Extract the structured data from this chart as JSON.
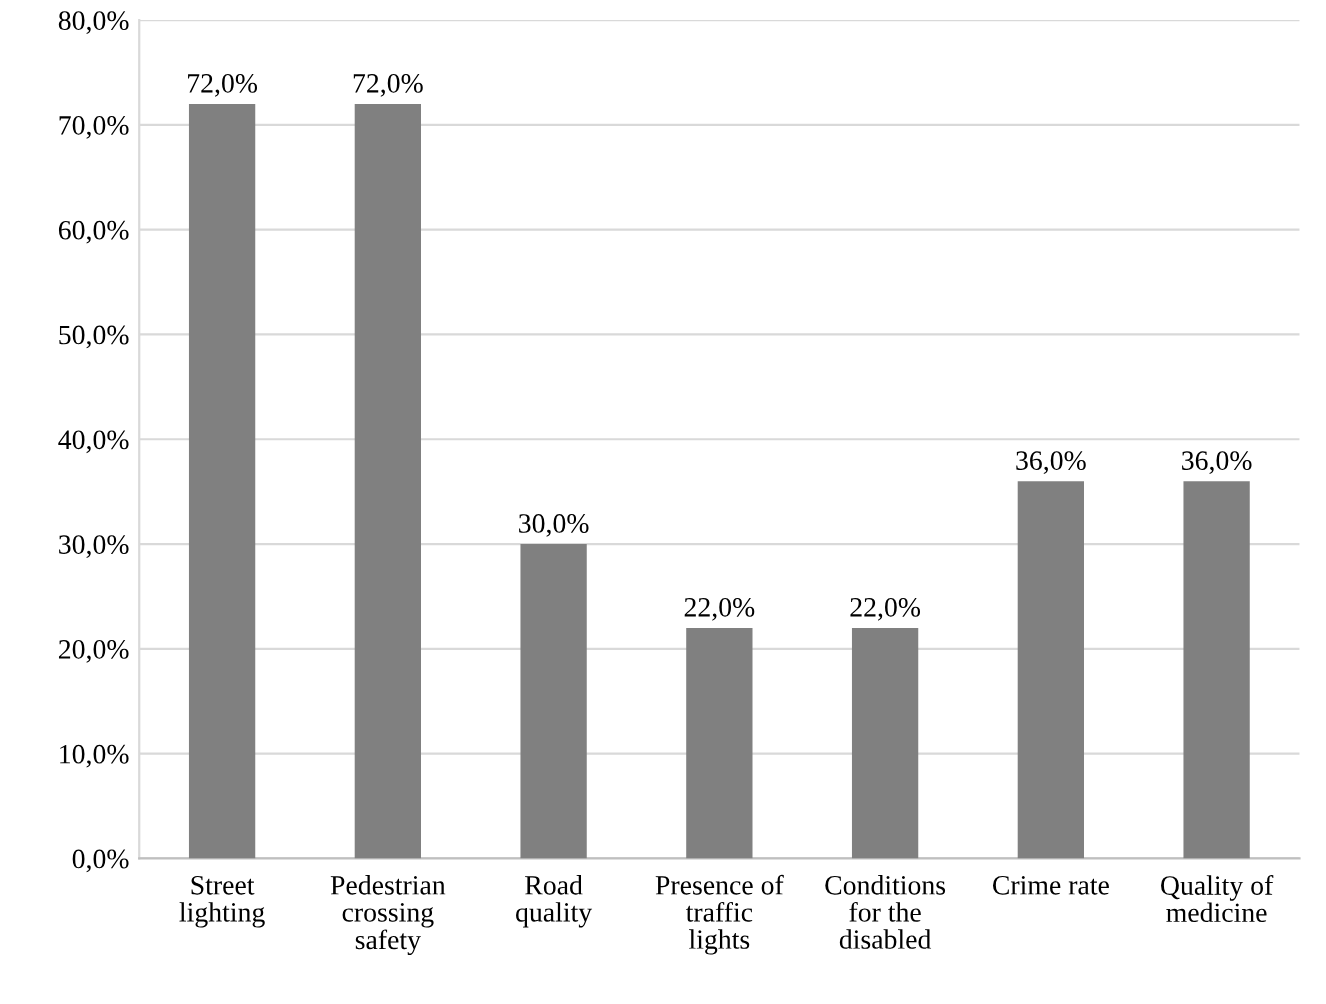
{
  "chart_data": {
    "type": "bar",
    "categories": [
      "Street\nlighting",
      "Pedestrian\ncrossing\nsafety",
      "Road\nquality",
      "Presence of\ntraffic\nlights",
      "Conditions\nfor the\ndisabled",
      "Crime rate",
      "Quality of\nmedicine"
    ],
    "values": [
      72,
      72,
      30,
      22,
      22,
      36,
      36
    ],
    "value_labels": [
      "72,0%",
      "72,0%",
      "30,0%",
      "22,0%",
      "22,0%",
      "36,0%",
      "36,0%"
    ],
    "color": "#808080",
    "ylim": [
      0,
      80
    ],
    "yticks": [
      {
        "value": 0,
        "label": "0,0%"
      },
      {
        "value": 10,
        "label": "10,0%"
      },
      {
        "value": 20,
        "label": "20,0%"
      },
      {
        "value": 30,
        "label": "30,0%"
      },
      {
        "value": 40,
        "label": "40,0%"
      },
      {
        "value": 50,
        "label": "50,0%"
      },
      {
        "value": 60,
        "label": "60,0%"
      },
      {
        "value": 70,
        "label": "70,0%"
      },
      {
        "value": 80,
        "label": "80,0%"
      }
    ],
    "grid": "y"
  }
}
